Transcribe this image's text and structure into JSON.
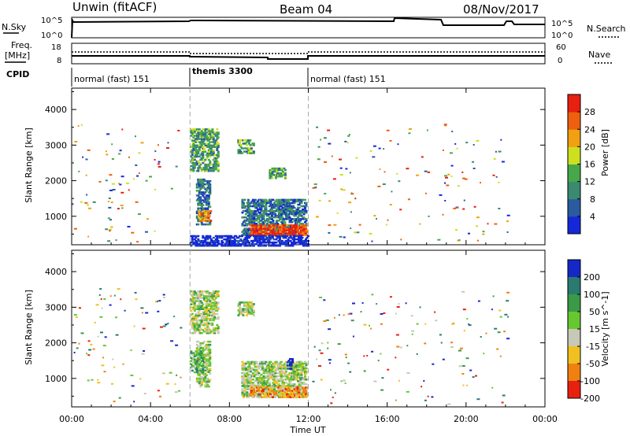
{
  "header": {
    "station": "Unwin (fitACF)",
    "beam": "Beam 04",
    "date": "08/Nov/2017"
  },
  "strip": {
    "nsky_label": "N.Sky",
    "nsky_ticks": [
      "10^5",
      "10^0"
    ],
    "nsearch_label": "N.Search",
    "freq_label_line1": "Freq.",
    "freq_label_line2": "[MHz]",
    "freq_ticks": [
      "18",
      "8"
    ],
    "nave_label": "Nave",
    "nave_ticks": [
      "60",
      "0"
    ],
    "cpid_label": "CPID",
    "cpid_segments": [
      "normal (fast) 151",
      "themis 3300",
      "normal (fast) 151"
    ]
  },
  "chart_data": [
    {
      "type": "heatmap",
      "name": "power",
      "ylabel": "Slant Range [km]",
      "xlabel": "",
      "ylim": [
        200,
        4600
      ],
      "yticks": [
        "1000",
        "2000",
        "3000",
        "4000"
      ],
      "colorbar_label": "Power [dB]",
      "colorbar_ticks": [
        "4",
        "8",
        "12",
        "16",
        "20",
        "24",
        "28"
      ],
      "colors": [
        "#1428d8",
        "#2a5aa0",
        "#3a8a70",
        "#46a848",
        "#cce020",
        "#f0a010",
        "#ee6010",
        "#e82010"
      ],
      "regions": [
        {
          "t0": 6.0,
          "t1": 7.4,
          "r0": 2300,
          "r1": 3500,
          "level": 3
        },
        {
          "t0": 6.3,
          "t1": 7.0,
          "r0": 800,
          "r1": 2100,
          "level": 2
        },
        {
          "t0": 6.4,
          "t1": 7.0,
          "r0": 900,
          "r1": 1200,
          "level": 6
        },
        {
          "t0": 8.6,
          "t1": 11.9,
          "r0": 500,
          "r1": 1500,
          "level": 2
        },
        {
          "t0": 9.0,
          "t1": 11.9,
          "r0": 500,
          "r1": 800,
          "level": 7
        },
        {
          "t0": 8.4,
          "t1": 9.2,
          "r0": 2800,
          "r1": 3200,
          "level": 3
        },
        {
          "t0": 10.0,
          "t1": 10.8,
          "r0": 2100,
          "r1": 2400,
          "level": 3
        },
        {
          "t0": 6.0,
          "t1": 12.0,
          "r0": 200,
          "r1": 500,
          "level": 0
        }
      ]
    },
    {
      "type": "heatmap",
      "name": "velocity",
      "ylabel": "Slant Range [km]",
      "xlabel": "Time UT",
      "ylim": [
        200,
        4600
      ],
      "yticks": [
        "1000",
        "2000",
        "3000",
        "4000"
      ],
      "xticks": [
        "00:00",
        "04:00",
        "08:00",
        "12:00",
        "16:00",
        "20:00",
        "00:00"
      ],
      "xlim_hours": [
        0,
        24
      ],
      "colorbar_label": "Velocity [m s^-1]",
      "colorbar_ticks": [
        "200",
        "100",
        "50",
        "15",
        "-15",
        "-50",
        "-100",
        "-200"
      ],
      "colors": [
        "#1428c8",
        "#2a7a70",
        "#3a9a48",
        "#66c830",
        "#c8c8b8",
        "#f0c020",
        "#f08010",
        "#e82010"
      ],
      "regions": [
        {
          "t0": 6.0,
          "t1": 7.4,
          "r0": 2300,
          "r1": 3500,
          "level": 4
        },
        {
          "t0": 6.3,
          "t1": 7.0,
          "r0": 800,
          "r1": 2100,
          "level": 4
        },
        {
          "t0": 8.6,
          "t1": 11.9,
          "r0": 500,
          "r1": 1500,
          "level": 4
        },
        {
          "t0": 9.0,
          "t1": 11.9,
          "r0": 500,
          "r1": 800,
          "level": 6
        },
        {
          "t0": 6.0,
          "t1": 6.6,
          "r0": 1200,
          "r1": 1800,
          "level": 3
        },
        {
          "t0": 10.9,
          "t1": 11.2,
          "r0": 1300,
          "r1": 1600,
          "level": 0
        },
        {
          "t0": 8.4,
          "t1": 9.2,
          "r0": 2800,
          "r1": 3200,
          "level": 4
        }
      ]
    }
  ]
}
